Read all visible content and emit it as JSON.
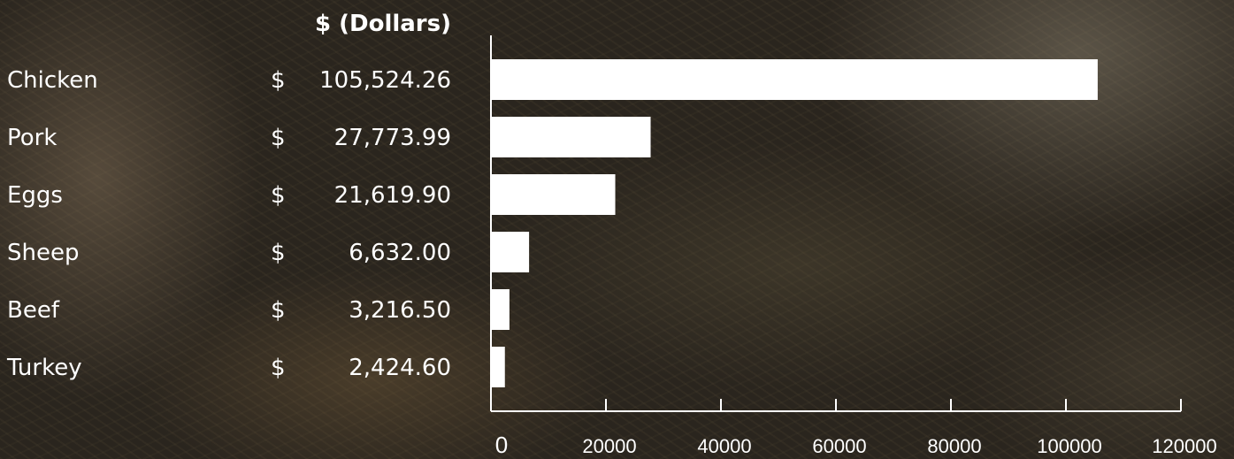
{
  "chart_data": {
    "type": "bar",
    "orientation": "horizontal",
    "header": "$ (Dollars)",
    "currency_symbol": "$",
    "categories": [
      "Chicken",
      "Pork",
      "Eggs",
      "Sheep",
      "Beef",
      "Turkey"
    ],
    "values": [
      105524.26,
      27773.99,
      21619.9,
      6632.0,
      3216.5,
      2424.6
    ],
    "value_labels": [
      "105,524.26",
      "27,773.99",
      "21,619.90",
      "6,632.00",
      "3,216.50",
      "2,424.60"
    ],
    "x_ticks": [
      "0",
      "20000",
      "40000",
      "60000",
      "80000",
      "100000",
      "120000"
    ],
    "xlim": [
      0,
      120000
    ],
    "bar_color": "#ffffff",
    "axis_color": "#ffffff",
    "grid": false,
    "legend": "none"
  }
}
